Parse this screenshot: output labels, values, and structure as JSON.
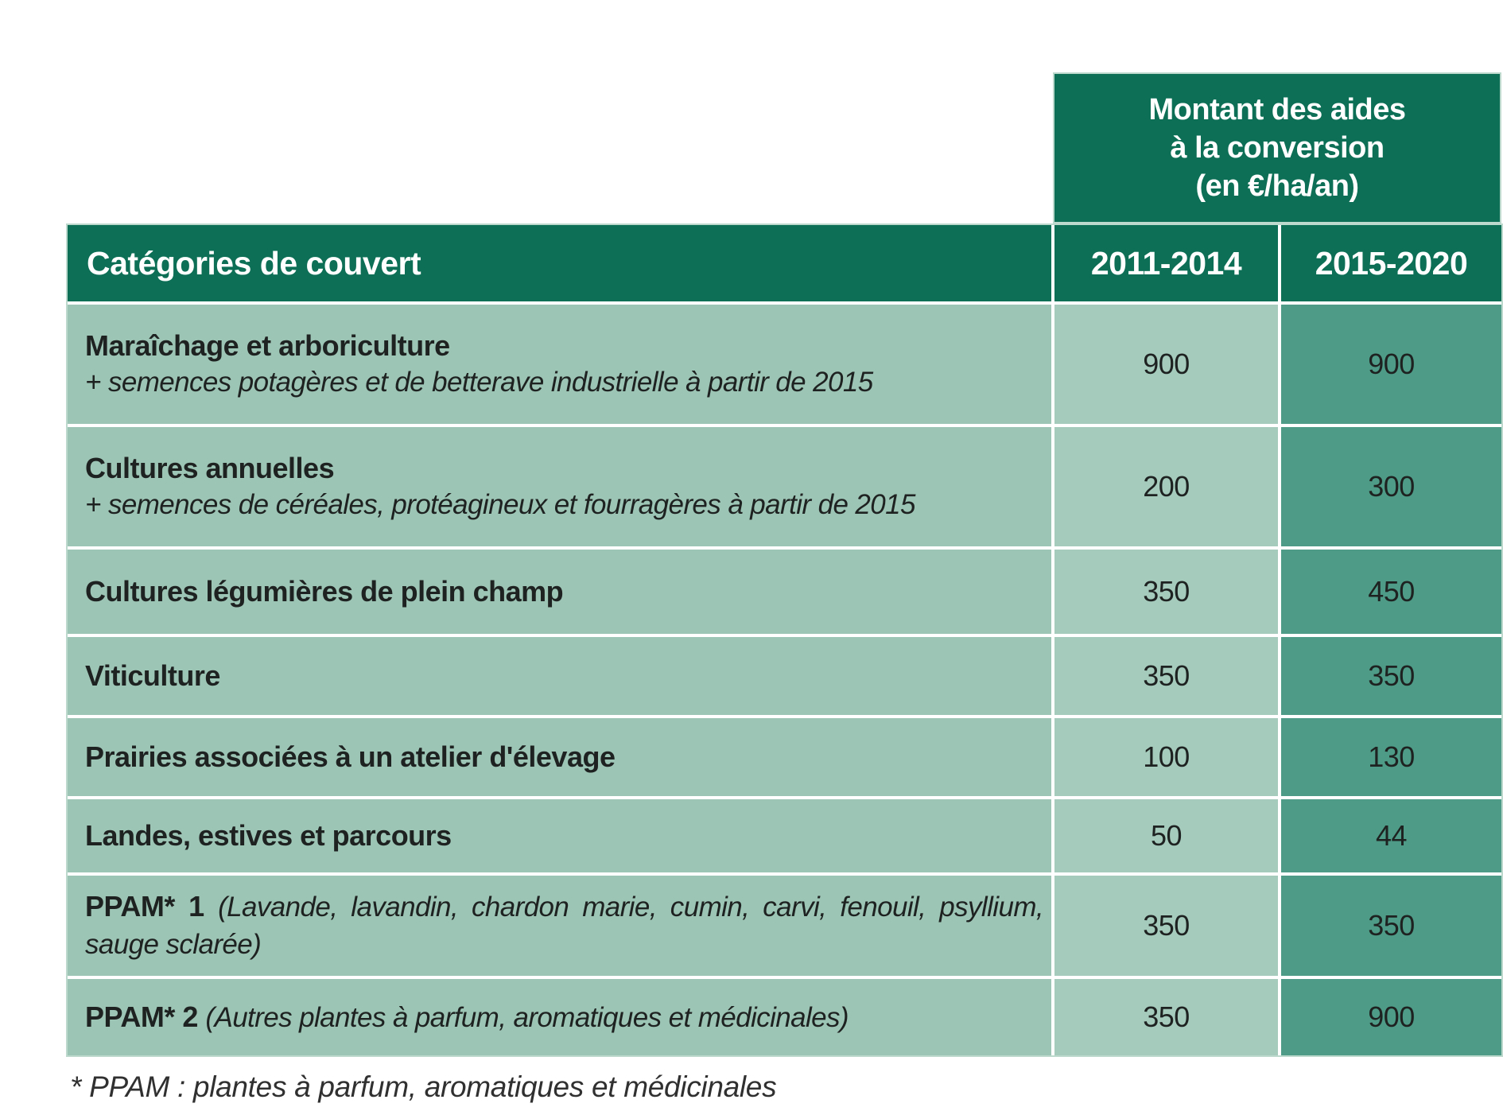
{
  "table": {
    "spanner_header": "Montant des aides\nà la conversion\n(en €/ha/an)",
    "columns": [
      "Catégories de couvert",
      "2011-2014",
      "2015-2020"
    ],
    "rows": [
      {
        "name": "Maraîchage et arboriculture",
        "sub": "+ semences potagères et de betterave industrielle à partir de 2015",
        "sub_layout": "block",
        "justify": false,
        "values": [
          "900",
          "900"
        ]
      },
      {
        "name": "Cultures annuelles",
        "sub": "+ semences de céréales, protéagineux et fourragères à partir de 2015",
        "sub_layout": "block",
        "justify": false,
        "values": [
          "200",
          "300"
        ]
      },
      {
        "name": "Cultures légumières de plein champ",
        "sub": "",
        "sub_layout": "none",
        "justify": false,
        "values": [
          "350",
          "450"
        ]
      },
      {
        "name": "Viticulture",
        "sub": "",
        "sub_layout": "none",
        "justify": false,
        "values": [
          "350",
          "350"
        ]
      },
      {
        "name": "Prairies associées à un atelier d'élevage",
        "sub": "",
        "sub_layout": "none",
        "justify": false,
        "values": [
          "100",
          "130"
        ]
      },
      {
        "name": "Landes, estives et parcours",
        "sub": "",
        "sub_layout": "none",
        "justify": false,
        "values": [
          "50",
          "44"
        ]
      },
      {
        "name": "PPAM* 1",
        "sub": "(Lavande, lavandin, chardon marie, cumin, carvi, fenouil, psyllium, sauge sclarée)",
        "sub_layout": "inline",
        "justify": true,
        "values": [
          "350",
          "350"
        ]
      },
      {
        "name": "PPAM* 2",
        "sub": "(Autres plantes à parfum, aromatiques et médicinales)",
        "sub_layout": "inline",
        "justify": false,
        "values": [
          "350",
          "900"
        ]
      }
    ]
  },
  "footnote": "* PPAM : plantes à parfum, aromatiques et médicinales",
  "colors": {
    "header_green": "#0d6f56",
    "cell_light": "#9dc5b6",
    "cell_light2": "#a5cbbd",
    "cell_dark": "#4e9c87",
    "border_light": "#bdd8cc",
    "text_dark": "#1e2220"
  }
}
